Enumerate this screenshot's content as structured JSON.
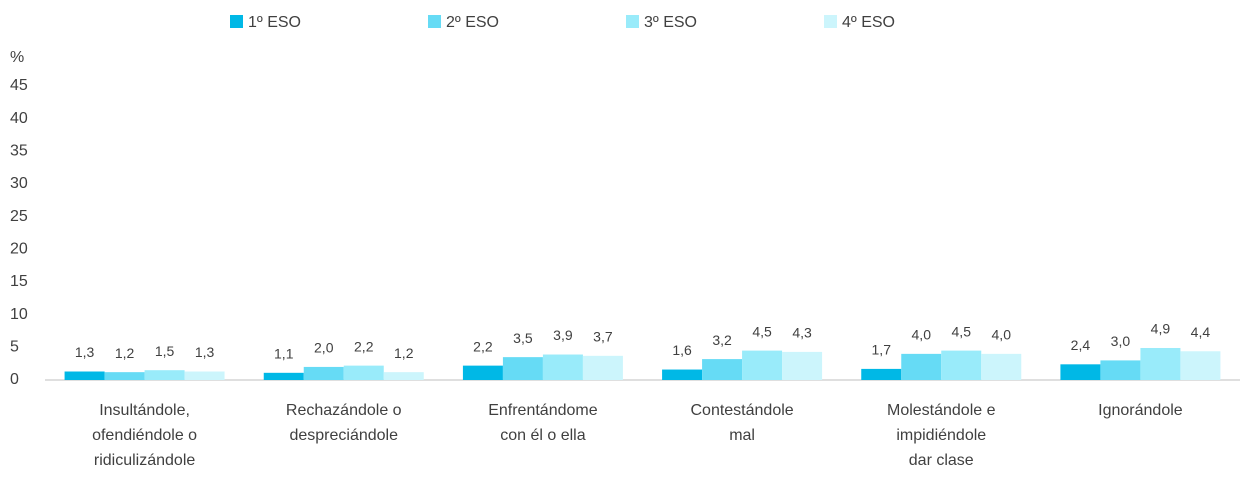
{
  "chart_data": {
    "type": "bar",
    "ylabel": "%",
    "categories": [
      [
        "Insultándole,",
        "ofendiéndole o",
        "ridiculizándole"
      ],
      [
        "Rechazándole o",
        "despreciándole"
      ],
      [
        "Enfrentándome",
        "con él o ella"
      ],
      [
        "Contestándole",
        "mal"
      ],
      [
        "Molestándole e",
        "impidiéndole",
        "dar clase"
      ],
      [
        "Ignorándole"
      ]
    ],
    "series": [
      {
        "name": "1º ESO",
        "color": "#00b8e6",
        "values": [
          1.3,
          1.1,
          2.2,
          1.6,
          1.7,
          2.4
        ],
        "value_labels": [
          "1,3",
          "1,1",
          "2,2",
          "1,6",
          "1,7",
          "2,4"
        ]
      },
      {
        "name": "2º ESO",
        "color": "#66dbf5",
        "values": [
          1.2,
          2.0,
          3.5,
          3.2,
          4.0,
          3.0
        ],
        "value_labels": [
          "1,2",
          "2,0",
          "3,5",
          "3,2",
          "4,0",
          "3,0"
        ]
      },
      {
        "name": "3º ESO",
        "color": "#99ebfa",
        "values": [
          1.5,
          2.2,
          3.9,
          4.5,
          4.5,
          4.9
        ],
        "value_labels": [
          "1,5",
          "2,2",
          "3,9",
          "4,5",
          "4,5",
          "4,9"
        ]
      },
      {
        "name": "4º ESO",
        "color": "#ccf5fc",
        "values": [
          1.3,
          1.2,
          3.7,
          4.3,
          4.0,
          4.4
        ],
        "value_labels": [
          "1,3",
          "1,2",
          "3,7",
          "4,3",
          "4,0",
          "4,4"
        ]
      }
    ],
    "ylim": [
      0,
      45
    ],
    "yticks": [
      0,
      5,
      10,
      15,
      20,
      25,
      30,
      35,
      40,
      45
    ],
    "grid": false,
    "legend": "top"
  }
}
